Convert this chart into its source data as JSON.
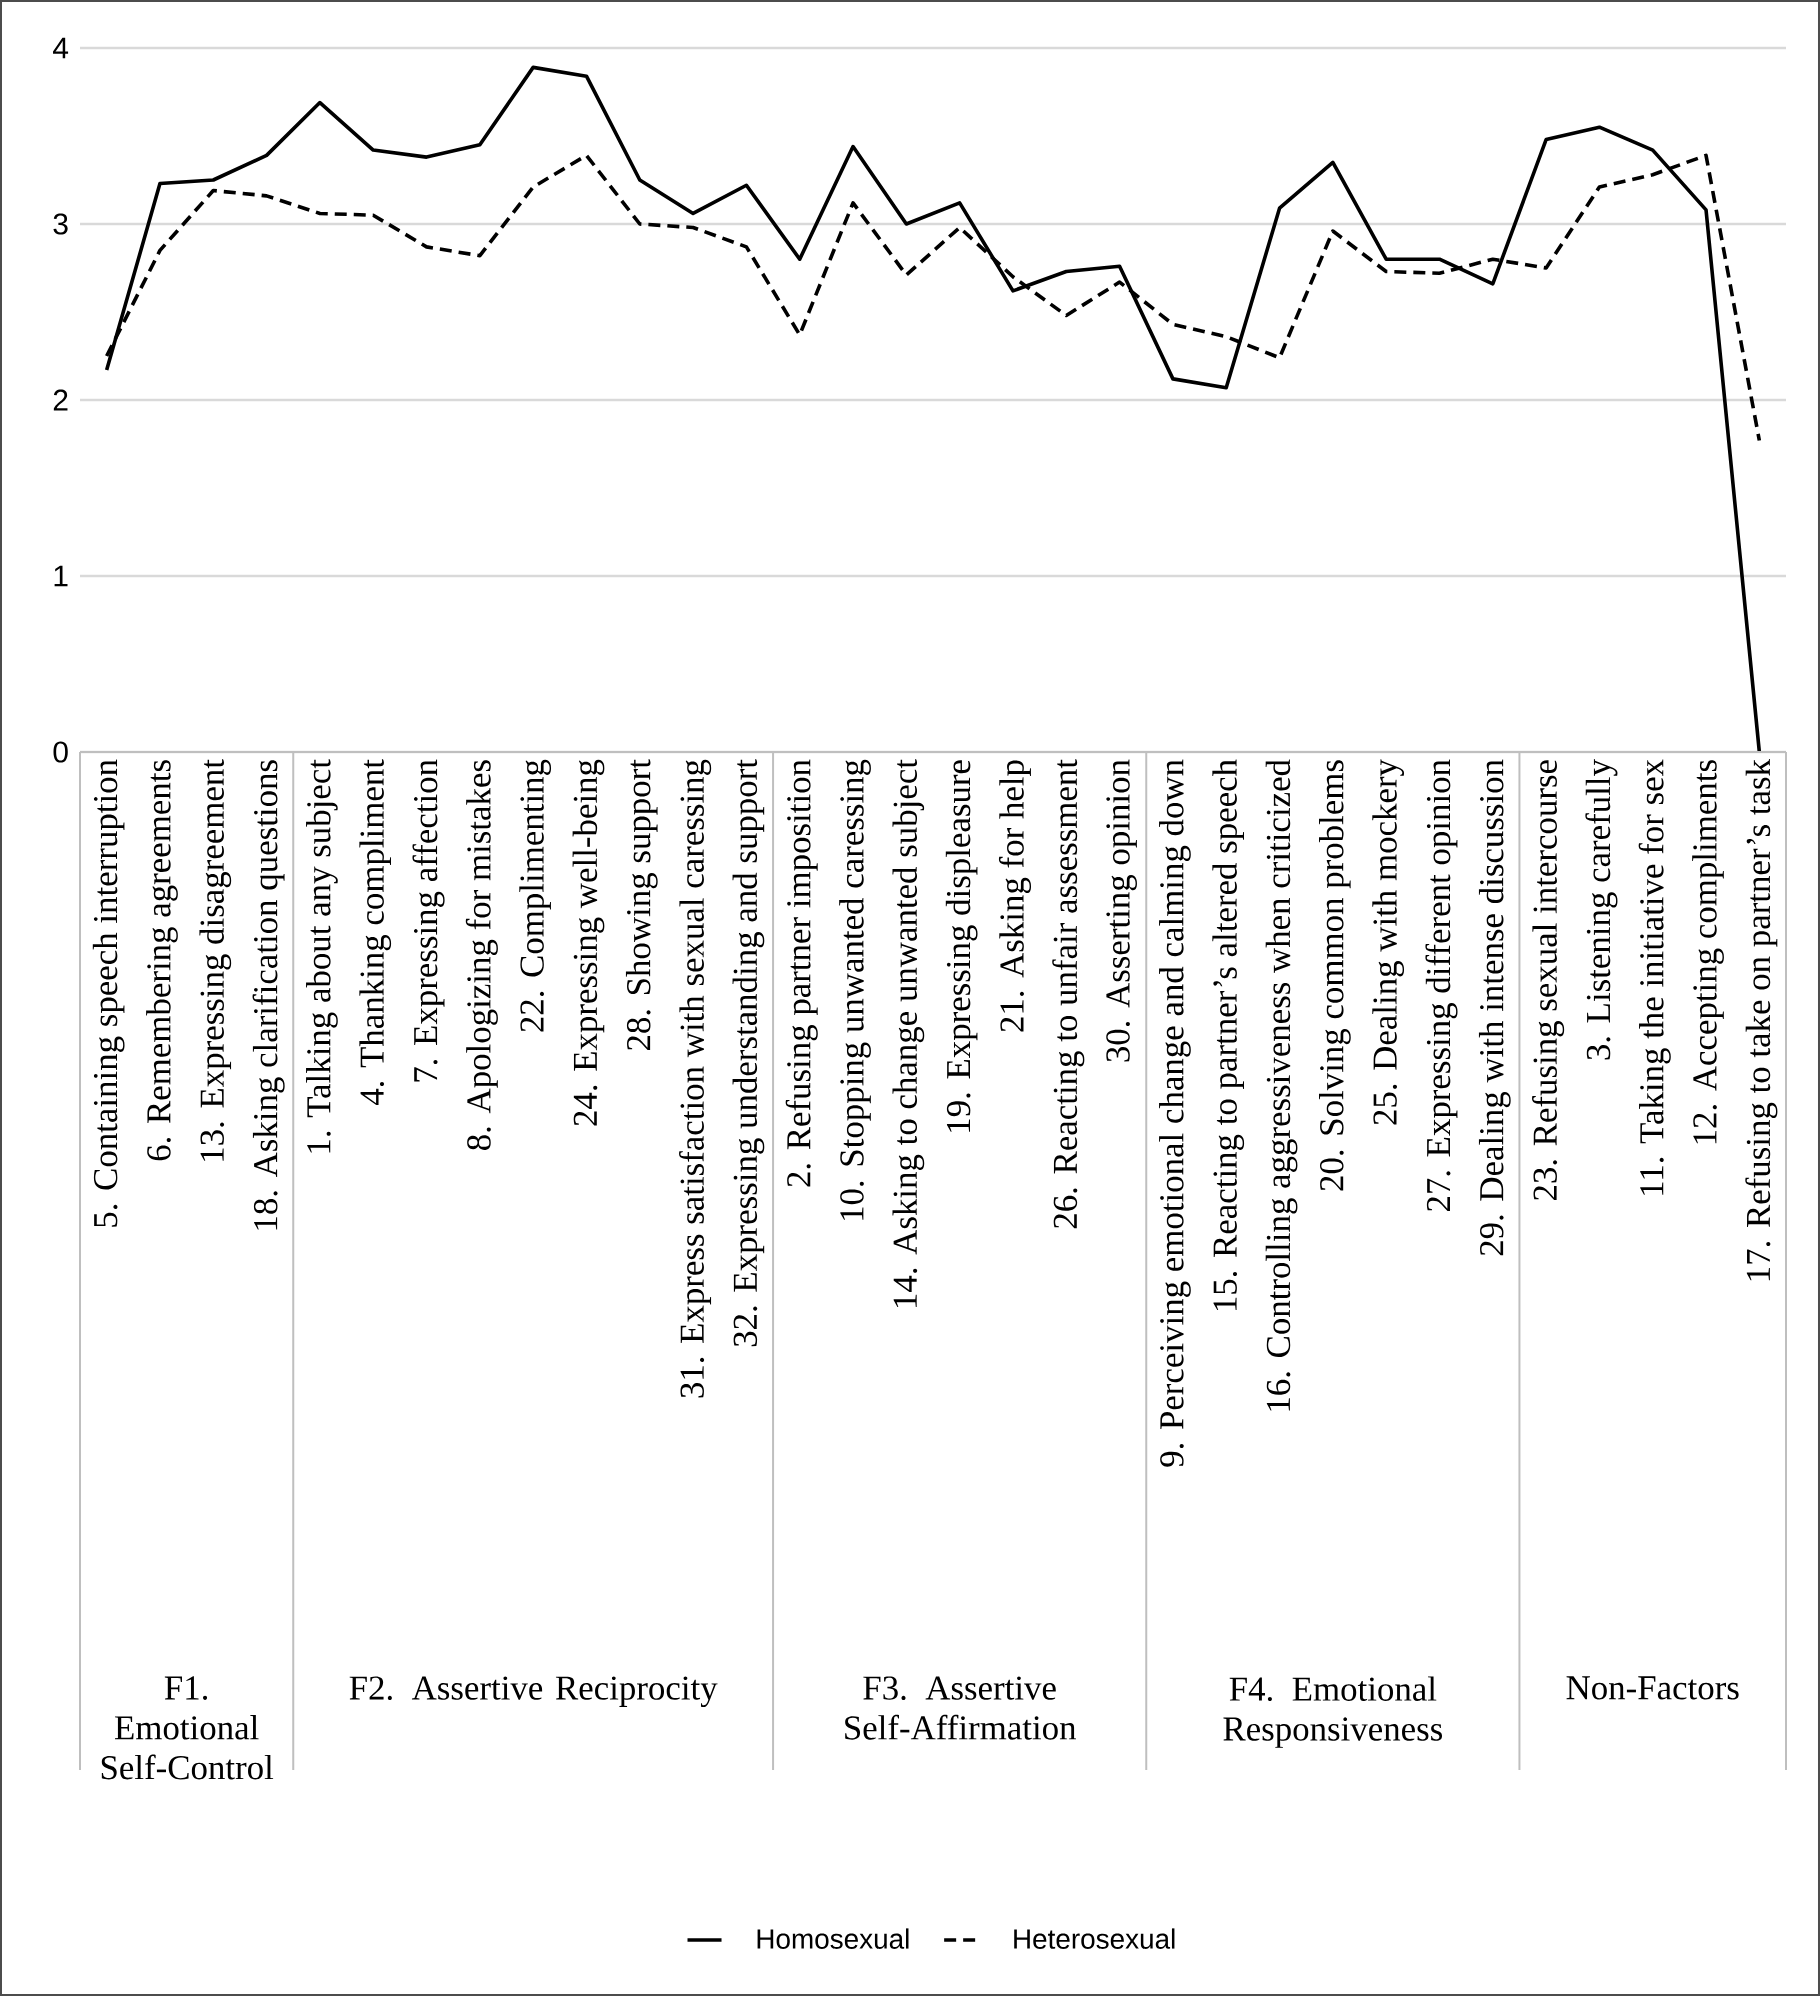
{
  "chart_data": {
    "type": "line",
    "categories": [
      "5. Containing speech interruption",
      "6. Remembering agreements",
      "13. Expressing disagreement",
      "18. Asking clarification questions",
      "1. Talking about any subject",
      "4. Thanking compliment",
      "7. Expressing affection",
      "8. Apologizing for mistakes",
      "22. Complimenting",
      "24. Expressing well-being",
      "28. Showing support",
      "31. Express satisfaction with sexual caressing",
      "32. Expressing understanding and support",
      "2. Refusing partner imposition",
      "10. Stopping unwanted caressing",
      "14. Asking to change unwanted subject",
      "19. Expressing displeasure",
      "21. Asking for help",
      "26. Reacting to unfair assessment",
      "30. Asserting opinion",
      "9. Perceiving emotional change and calming down",
      "15. Reacting to partner’s altered speech",
      "16. Controlling aggressiveness when criticized",
      "20. Solving common problems",
      "25. Dealing with mockery",
      "27. Expressing different opinion",
      "29. Dealing with intense discussion",
      "23. Refusing sexual intercourse",
      "3. Listening carefully",
      "11. Taking the initiative for sex",
      "12. Accepting compliments",
      "17. Refusing to take on partner’s task"
    ],
    "series": [
      {
        "name": "Homosexual",
        "color": "#000000",
        "line_style": "solid",
        "values": [
          2.17,
          3.23,
          3.25,
          3.39,
          3.69,
          3.42,
          3.38,
          3.45,
          3.89,
          3.84,
          3.25,
          3.06,
          3.22,
          2.8,
          3.44,
          3.0,
          3.12,
          2.62,
          2.73,
          2.76,
          2.12,
          2.07,
          3.09,
          3.35,
          2.8,
          2.8,
          2.66,
          3.48,
          3.55,
          3.42,
          3.08,
          0
        ]
      },
      {
        "name": "Heterosexual",
        "color": "#000000",
        "line_style": "dashed",
        "values": [
          2.25,
          2.85,
          3.19,
          3.16,
          3.06,
          3.05,
          2.87,
          2.82,
          3.21,
          3.39,
          3.0,
          2.98,
          2.87,
          2.37,
          3.12,
          2.71,
          2.98,
          2.7,
          2.48,
          2.67,
          2.43,
          2.36,
          2.24,
          2.96,
          2.73,
          2.72,
          2.8,
          2.75,
          3.21,
          3.28,
          3.39,
          1.77
        ]
      }
    ],
    "ylim": [
      0,
      4
    ],
    "yticks": [
      0,
      1,
      2,
      3,
      4
    ],
    "grid": "y",
    "legend": "bottom",
    "marker": "none",
    "annotations": [
      "F1. Emotional Self-Control",
      "F2. Assertive Reciprocity",
      "F3. Assertive Self-Affirmation",
      "F4. Emotional Responsiveness",
      "Non-Factors"
    ]
  }
}
